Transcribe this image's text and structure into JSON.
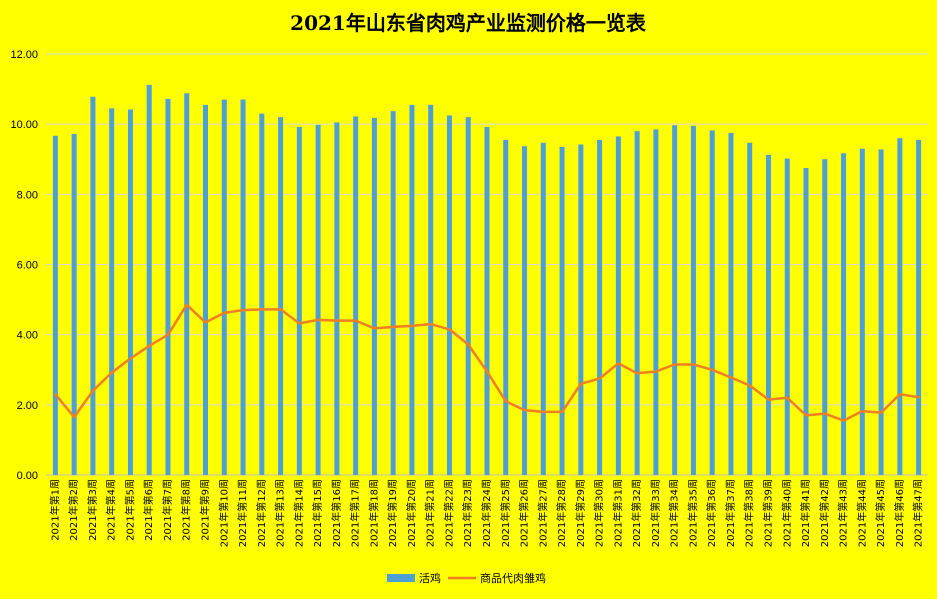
{
  "chart_data": {
    "type": "bar",
    "title": "2021年山东省肉鸡产业监测价格一览表",
    "xlabel": "",
    "ylabel": "",
    "ylim": [
      0,
      12
    ],
    "yticks": [
      "0.00",
      "2.00",
      "4.00",
      "6.00",
      "8.00",
      "10.00",
      "12.00"
    ],
    "grid": true,
    "legend_position": "bottom",
    "categories": [
      "2021年第1周",
      "2021年第2周",
      "2021年第3周",
      "2021年第4周",
      "2021年第5周",
      "2021年第6周",
      "2021年第7周",
      "2021年第8周",
      "2021年第9周",
      "2021年第10周",
      "2021年第11周",
      "2021年第12周",
      "2021年第13周",
      "2021年第14周",
      "2021年第15周",
      "2021年第16周",
      "2021年第17周",
      "2021年第18周",
      "2021年第19周",
      "2021年第20周",
      "2021年第21周",
      "2021年第22周",
      "2021年第23周",
      "2021年第24周",
      "2021年第25周",
      "2021年第26周",
      "2021年第27周",
      "2021年第28周",
      "2021年第29周",
      "2021年第30周",
      "2021年第31周",
      "2021年第32周",
      "2021年第33周",
      "2021年第34周",
      "2021年第35周",
      "2021年第36周",
      "2021年第37周",
      "2021年第38周",
      "2021年第39周",
      "2021年第40周",
      "2021年第41周",
      "2021年第42周",
      "2021年第43周",
      "2021年第44周",
      "2021年第45周",
      "2021年第46周",
      "2021年第47周"
    ],
    "series": [
      {
        "name": "活鸡",
        "type": "bar",
        "color": "#4e9fd6",
        "values": [
          9.67,
          9.72,
          10.78,
          10.45,
          10.42,
          11.12,
          10.72,
          10.88,
          10.55,
          10.7,
          10.7,
          10.3,
          10.2,
          9.92,
          9.98,
          10.05,
          10.22,
          10.18,
          10.37,
          10.55,
          10.55,
          10.25,
          10.2,
          9.92,
          9.55,
          9.37,
          9.47,
          9.35,
          9.42,
          9.55,
          9.65,
          9.8,
          9.85,
          9.97,
          9.95,
          9.82,
          9.75,
          9.47,
          9.12,
          9.02,
          8.75,
          9.0,
          9.17,
          9.3,
          9.28,
          9.6,
          9.55
        ]
      },
      {
        "name": "商品代肉雏鸡",
        "type": "line",
        "color": "#f07f22",
        "values": [
          2.3,
          1.65,
          2.4,
          2.92,
          3.32,
          3.68,
          4.0,
          4.85,
          4.35,
          4.62,
          4.7,
          4.72,
          4.72,
          4.32,
          4.42,
          4.4,
          4.4,
          4.18,
          4.22,
          4.25,
          4.3,
          4.15,
          3.72,
          2.95,
          2.1,
          1.85,
          1.8,
          1.8,
          2.6,
          2.75,
          3.18,
          2.9,
          2.95,
          3.15,
          3.15,
          3.0,
          2.78,
          2.55,
          2.15,
          2.2,
          1.7,
          1.75,
          1.55,
          1.82,
          1.78,
          2.3,
          2.22
        ]
      }
    ]
  }
}
